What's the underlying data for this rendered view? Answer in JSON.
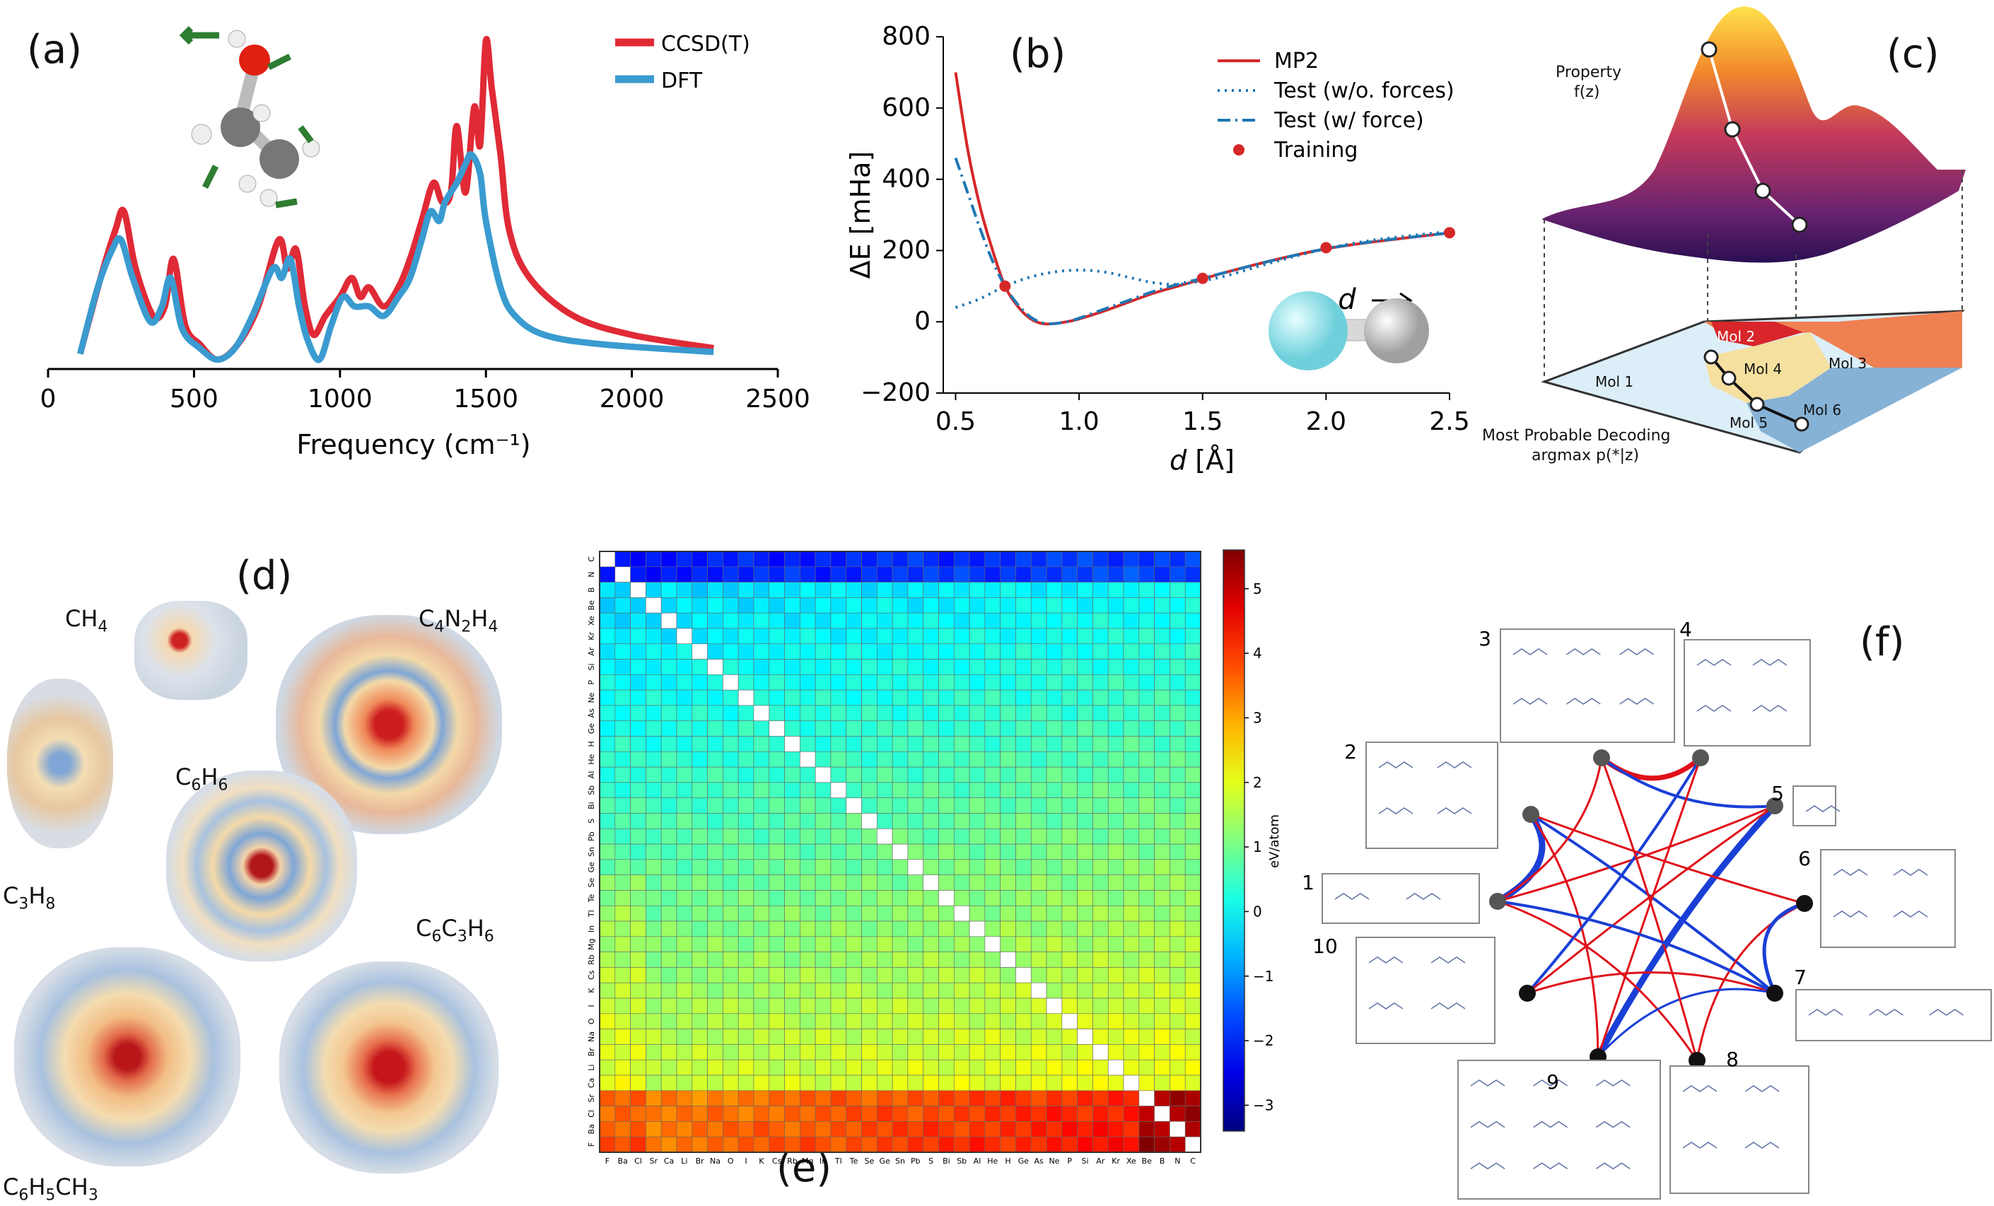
{
  "panels": {
    "a": "(a)",
    "b": "(b)",
    "c": "(c)",
    "d": "(d)",
    "e": "(e)",
    "f": "(f)"
  },
  "chart_data": [
    {
      "id": "a",
      "type": "line",
      "xlabel": "Frequency (cm⁻¹)",
      "ylabel": "",
      "xlim": [
        0,
        2500
      ],
      "xticks": [
        "0",
        "500",
        "1000",
        "1500",
        "2000",
        "2500"
      ],
      "series": [
        {
          "name": "CCSD(T)",
          "color": "#e02a36",
          "x": [
            110,
            180,
            230,
            260,
            300,
            360,
            400,
            430,
            470,
            520,
            580,
            650,
            720,
            790,
            820,
            850,
            880,
            910,
            950,
            1000,
            1040,
            1070,
            1100,
            1150,
            1200,
            1240,
            1280,
            1320,
            1350,
            1380,
            1400,
            1430,
            1460,
            1480,
            1500,
            1520,
            1550,
            1580,
            1650,
            1800,
            2000,
            2280
          ],
          "y": [
            0.05,
            0.45,
            0.7,
            0.8,
            0.5,
            0.25,
            0.3,
            0.55,
            0.2,
            0.1,
            0.02,
            0.1,
            0.3,
            0.65,
            0.5,
            0.6,
            0.3,
            0.15,
            0.25,
            0.35,
            0.45,
            0.35,
            0.4,
            0.3,
            0.4,
            0.55,
            0.75,
            0.95,
            0.85,
            0.9,
            1.25,
            0.9,
            1.35,
            1.15,
            1.7,
            1.45,
            1.1,
            0.7,
            0.45,
            0.25,
            0.15,
            0.08
          ]
        },
        {
          "name": "DFT",
          "color": "#3a9bd0",
          "x": [
            110,
            170,
            220,
            250,
            290,
            350,
            390,
            420,
            460,
            520,
            580,
            640,
            700,
            770,
            800,
            830,
            860,
            890,
            930,
            970,
            1010,
            1050,
            1100,
            1150,
            1200,
            1240,
            1280,
            1310,
            1340,
            1360,
            1400,
            1430,
            1450,
            1480,
            1500,
            1550,
            1600,
            1700,
            1900,
            2280
          ],
          "y": [
            0.05,
            0.4,
            0.6,
            0.65,
            0.45,
            0.22,
            0.3,
            0.45,
            0.18,
            0.08,
            0.02,
            0.08,
            0.25,
            0.5,
            0.45,
            0.55,
            0.3,
            0.12,
            0.02,
            0.2,
            0.35,
            0.3,
            0.3,
            0.25,
            0.35,
            0.45,
            0.65,
            0.8,
            0.75,
            0.85,
            0.95,
            1.05,
            1.1,
            1.0,
            0.75,
            0.4,
            0.25,
            0.15,
            0.1,
            0.06
          ]
        }
      ]
    },
    {
      "id": "b",
      "type": "line",
      "xlabel": "d [Å]",
      "xlabel_italic": "d",
      "xlabel_rest": " [Å]",
      "ylabel": "ΔE [mHa]",
      "xlim": [
        0.45,
        2.5
      ],
      "ylim": [
        -200,
        800
      ],
      "xticks": [
        "0.5",
        "1.0",
        "1.5",
        "2.0",
        "2.5"
      ],
      "yticks": [
        "−200",
        "0",
        "200",
        "400",
        "600",
        "800"
      ],
      "annotation": "d",
      "series": [
        {
          "name": "MP2",
          "color": "#d62728",
          "style": "solid",
          "x": [
            0.5,
            0.55,
            0.6,
            0.65,
            0.7,
            0.75,
            0.8,
            0.85,
            0.9,
            0.95,
            1.0,
            1.1,
            1.2,
            1.3,
            1.4,
            1.5,
            1.6,
            1.8,
            2.0,
            2.2,
            2.48
          ],
          "y": [
            700,
            480,
            320,
            200,
            100,
            45,
            10,
            -5,
            -5,
            0,
            8,
            30,
            55,
            80,
            100,
            120,
            140,
            175,
            205,
            225,
            248
          ]
        },
        {
          "name": "Test (w/o. forces)",
          "color": "#1f77b4",
          "style": "dotted",
          "x": [
            0.5,
            0.6,
            0.7,
            0.8,
            0.9,
            1.0,
            1.1,
            1.2,
            1.3,
            1.4,
            1.5,
            1.6,
            1.8,
            2.0,
            2.2,
            2.48
          ],
          "y": [
            40,
            65,
            100,
            125,
            140,
            145,
            140,
            125,
            110,
            105,
            115,
            130,
            170,
            205,
            230,
            252
          ]
        },
        {
          "name": "Test (w/ force)",
          "color": "#1f77b4",
          "style": "dashdot",
          "x": [
            0.5,
            0.55,
            0.6,
            0.65,
            0.7,
            0.75,
            0.8,
            0.85,
            0.9,
            0.95,
            1.0,
            1.1,
            1.2,
            1.3,
            1.4,
            1.5,
            1.6,
            1.8,
            2.0,
            2.2,
            2.48
          ],
          "y": [
            460,
            360,
            260,
            170,
            100,
            50,
            15,
            -3,
            -5,
            0,
            10,
            35,
            60,
            85,
            105,
            122,
            140,
            175,
            205,
            226,
            248
          ]
        },
        {
          "name": "Training",
          "color": "#d62728",
          "style": "markers",
          "x": [
            0.7,
            1.5,
            2.0,
            2.5
          ],
          "y": [
            100,
            122,
            208,
            250
          ]
        }
      ]
    },
    {
      "id": "e",
      "type": "heatmap",
      "colorbar_label": "eV/atom",
      "colorbar_ticks": [
        "5",
        "4",
        "3",
        "2",
        "1",
        "0",
        "−1",
        "−2",
        "−3"
      ],
      "elements": [
        "F",
        "Ba",
        "Cl",
        "Sr",
        "Ca",
        "Li",
        "Br",
        "Na",
        "O",
        "I",
        "K",
        "Cs",
        "Rb",
        "Mg",
        "In",
        "Tl",
        "Te",
        "Se",
        "Ge",
        "Sn",
        "Pb",
        "S",
        "Bi",
        "Sb",
        "Al",
        "He",
        "H",
        "Ge",
        "As",
        "Ne",
        "P",
        "Si",
        "Ar",
        "Kr",
        "Xe",
        "Be",
        "B",
        "N",
        "C"
      ]
    }
  ],
  "panel_c": {
    "property_label": "Property",
    "property_fz": "f(z)",
    "decoding_line1": "Most Probable Decoding",
    "decoding_line2": "argmax p(*|z)",
    "regions": [
      "Mol 1",
      "Mol 2",
      "Mol 3",
      "Mol 4",
      "Mol 5",
      "Mol 6"
    ]
  },
  "panel_d": {
    "molecules": [
      {
        "base": "CH",
        "sub": "4",
        "rest": ""
      },
      {
        "base": "C",
        "sub": "4",
        "rest": "N",
        "sub2": "2",
        "rest2": "H",
        "sub3": "4"
      },
      {
        "base": "C",
        "sub": "6",
        "rest": "H",
        "sub2": "6"
      },
      {
        "base": "C",
        "sub": "3",
        "rest": "H",
        "sub2": "8"
      },
      {
        "base": "C",
        "sub": "6",
        "rest": "C",
        "sub2": "3",
        "rest2": "H",
        "sub3": "6"
      },
      {
        "base": "C",
        "sub": "6",
        "rest": "H",
        "sub2": "5",
        "rest2": "CH",
        "sub3": "3"
      }
    ]
  },
  "panel_f": {
    "cluster_numbers": [
      "1",
      "2",
      "3",
      "4",
      "5",
      "6",
      "7",
      "8",
      "9",
      "10"
    ]
  }
}
